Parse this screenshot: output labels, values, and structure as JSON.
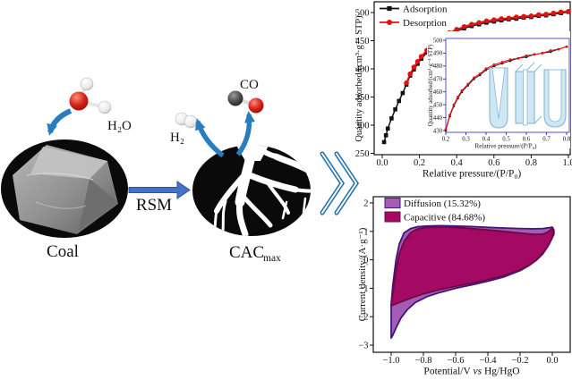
{
  "background": "#ffffff",
  "diagram": {
    "h2o_label": "H₂O",
    "h2_label": "H₂",
    "co_label": "CO",
    "coal_label": "Coal",
    "rsm_label": "RSM",
    "cac_label": "CAC",
    "cac_sub": "max",
    "colors": {
      "arrow_blue": "#2a7cc0",
      "rsm_arrow_blue": "#4472c4",
      "chevron_blue": "#1d6fae",
      "oxygen_red": "#d42016",
      "carbon_gray": "#3f3f3f",
      "hydrogen_white": "#f2f2f2"
    }
  },
  "chart_data": [
    {
      "type": "line",
      "title": "",
      "xlabel": "Relative pressure/(P/P₀)",
      "ylabel": "Quantity adsorbed/(cm³·g⁻¹ STP)",
      "xlim": [
        0.0,
        1.0
      ],
      "ylim": [
        250,
        520
      ],
      "xticks": [
        0.0,
        0.2,
        0.4,
        0.6,
        0.8,
        1.0
      ],
      "xtick_labels": [
        "0.0",
        "0.2",
        "0.4",
        "0.6",
        "0.8",
        "1.0"
      ],
      "yticks": [
        250,
        300,
        350,
        400,
        450,
        500
      ],
      "ytick_labels": [
        "250",
        "300",
        "350",
        "400",
        "450",
        "500"
      ],
      "grid": false,
      "legend_position": "top-left-inside",
      "series": [
        {
          "name": "Adsorption",
          "color": "#111111",
          "marker": "square",
          "x": [
            0.01,
            0.02,
            0.03,
            0.05,
            0.07,
            0.09,
            0.11,
            0.13,
            0.15,
            0.17,
            0.19,
            0.21,
            0.24,
            0.27,
            0.3,
            0.33,
            0.36,
            0.4,
            0.44,
            0.48,
            0.52,
            0.56,
            0.6,
            0.64,
            0.68,
            0.72,
            0.76,
            0.8,
            0.84,
            0.88,
            0.92,
            0.96,
            1.0
          ],
          "y": [
            270,
            282,
            294,
            312,
            328,
            343,
            357,
            372,
            388,
            399,
            409,
            418,
            429,
            439,
            448,
            455,
            461,
            467,
            472,
            476,
            479,
            482,
            484,
            486,
            488,
            489,
            491,
            492,
            494,
            495,
            497,
            499,
            501
          ]
        },
        {
          "name": "Desorption",
          "color": "#e01212",
          "marker": "circle",
          "x": [
            0.13,
            0.15,
            0.17,
            0.19,
            0.21,
            0.24,
            0.27,
            0.3,
            0.33,
            0.36,
            0.4,
            0.44,
            0.48,
            0.52,
            0.56,
            0.6,
            0.64,
            0.68,
            0.72,
            0.76,
            0.8,
            0.84,
            0.88,
            0.92,
            0.96,
            1.0
          ],
          "y": [
            375,
            391,
            403,
            413,
            422,
            433,
            443,
            451,
            458,
            464,
            470,
            475,
            479,
            482,
            485,
            487,
            489,
            490,
            492,
            493,
            494,
            496,
            497,
            499,
            501,
            502
          ]
        }
      ],
      "inset": {
        "xlabel": "Relative pressure/(P/P₀)",
        "ylabel": "Quantity adsorbed/(cm³·g⁻¹ STP)",
        "xlim": [
          0.2,
          0.8
        ],
        "ylim": [
          430,
          500
        ],
        "xticks": [
          0.2,
          0.3,
          0.4,
          0.5,
          0.6,
          0.7,
          0.8
        ],
        "xtick_labels": [
          "0.2",
          "0.3",
          "0.4",
          "0.5",
          "0.6",
          "0.7",
          "0.8"
        ],
        "yticks": [
          430,
          440,
          450,
          460,
          470,
          480,
          490,
          500
        ],
        "ytick_labels": [
          "430",
          "440",
          "450",
          "460",
          "470",
          "480",
          "490",
          "500"
        ],
        "axis_color": "#2525bd",
        "frame_color": "#7b6fd0",
        "series": [
          {
            "name": "Adsorption",
            "color": "#1a1a1a",
            "marker": "square",
            "x": [
              0.2,
              0.22,
              0.24,
              0.26,
              0.28,
              0.31,
              0.34,
              0.37,
              0.4,
              0.44,
              0.48,
              0.52,
              0.56,
              0.6,
              0.64,
              0.68,
              0.72,
              0.76,
              0.8
            ],
            "y": [
              430,
              441,
              449,
              455,
              460,
              465,
              470,
              473,
              477,
              480,
              482,
              484,
              486,
              487,
              489,
              490,
              491,
              493,
              495
            ]
          },
          {
            "name": "Desorption",
            "color": "#e01212",
            "marker": "circle",
            "x": [
              0.2,
              0.22,
              0.24,
              0.26,
              0.28,
              0.31,
              0.34,
              0.37,
              0.4,
              0.44,
              0.48,
              0.52,
              0.56,
              0.6,
              0.64,
              0.68,
              0.72,
              0.76,
              0.8
            ],
            "y": [
              431,
              442,
              450,
              456,
              461,
              466,
              471,
              474,
              478,
              481,
              483,
              485,
              486,
              488,
              489,
              490,
              492,
              493,
              495
            ]
          }
        ]
      }
    },
    {
      "type": "area",
      "title": "",
      "xlabel": "Potential/V vs Hg/HgO",
      "xlabel_parts": {
        "pre": "Potential/V ",
        "italic": "vs",
        "post": " Hg/HgO"
      },
      "ylabel": "Current density/(A·g⁻¹)",
      "xlim": [
        -1.1,
        0.1
      ],
      "ylim": [
        -3.4,
        2.4
      ],
      "xticks": [
        -1.0,
        -0.8,
        -0.6,
        -0.4,
        -0.2,
        0.0
      ],
      "xtick_labels": [
        "−1.0",
        "−0.8",
        "−0.6",
        "−0.4",
        "−0.2",
        "0.0"
      ],
      "yticks": [
        -3,
        -2,
        -1,
        0,
        1,
        2
      ],
      "ytick_labels": [
        "−3",
        "−2",
        "−1",
        "0",
        "1",
        "2"
      ],
      "grid": false,
      "legend_position": "top-left-inside",
      "series": [
        {
          "name": "Diffusion (15.32%)",
          "fill": "#a55cb5",
          "stroke": "#41177a",
          "x": [
            -1.0,
            -0.99,
            -0.97,
            -0.95,
            -0.92,
            -0.88,
            -0.84,
            -0.78,
            -0.7,
            -0.6,
            -0.5,
            -0.4,
            -0.3,
            -0.2,
            -0.12,
            -0.06,
            -0.02,
            0.0,
            0.01,
            0.01,
            0.0,
            -0.03,
            -0.06,
            -0.1,
            -0.15,
            -0.2,
            -0.3,
            -0.4,
            -0.5,
            -0.6,
            -0.7,
            -0.78,
            -0.85,
            -0.9,
            -0.94,
            -0.97,
            -0.99,
            -1.0
          ],
          "y": [
            -1.55,
            -0.9,
            0.0,
            0.55,
            0.95,
            1.1,
            1.16,
            1.19,
            1.2,
            1.19,
            1.17,
            1.14,
            1.12,
            1.1,
            1.09,
            1.1,
            1.13,
            1.15,
            1.05,
            0.9,
            0.78,
            0.45,
            0.2,
            -0.02,
            -0.22,
            -0.38,
            -0.6,
            -0.75,
            -0.88,
            -1.0,
            -1.15,
            -1.3,
            -1.5,
            -1.75,
            -2.05,
            -2.4,
            -2.65,
            -2.75
          ]
        },
        {
          "name": "Capacitive (84.68%)",
          "fill": "#a40a63",
          "stroke": "#6e0848",
          "x": [
            -1.0,
            -0.985,
            -0.97,
            -0.95,
            -0.92,
            -0.88,
            -0.84,
            -0.78,
            -0.7,
            -0.6,
            -0.5,
            -0.4,
            -0.3,
            -0.2,
            -0.12,
            -0.06,
            -0.02,
            0.0,
            0.005,
            0.0,
            -0.02,
            -0.05,
            -0.09,
            -0.14,
            -0.2,
            -0.3,
            -0.4,
            -0.5,
            -0.6,
            -0.7,
            -0.8,
            -0.88,
            -0.94,
            -0.98,
            -1.0
          ],
          "y": [
            -1.6,
            -1.0,
            -0.35,
            0.2,
            0.65,
            0.95,
            1.08,
            1.14,
            1.16,
            1.14,
            1.1,
            1.05,
            1.0,
            0.94,
            0.9,
            0.9,
            1.0,
            1.13,
            0.95,
            0.78,
            0.55,
            0.3,
            0.05,
            -0.18,
            -0.35,
            -0.55,
            -0.7,
            -0.82,
            -0.93,
            -1.05,
            -1.2,
            -1.35,
            -1.48,
            -1.57,
            -1.62
          ]
        }
      ]
    }
  ]
}
